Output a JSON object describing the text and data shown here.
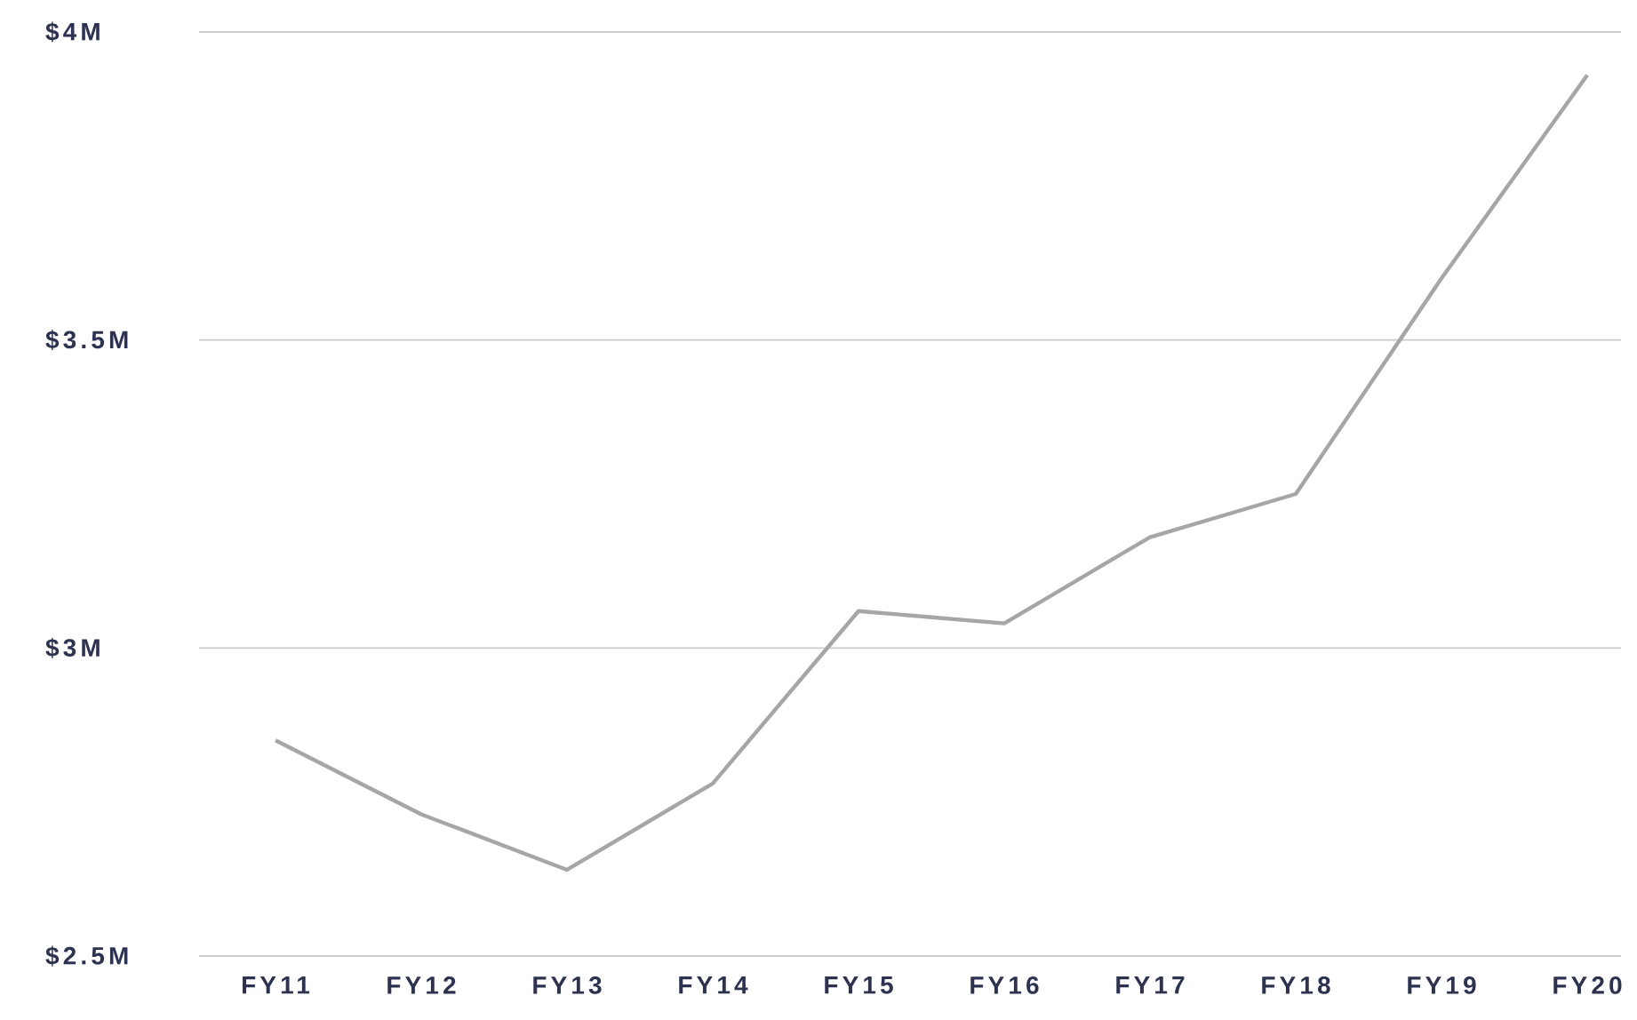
{
  "chart_data": {
    "type": "line",
    "categories": [
      "FY11",
      "FY12",
      "FY13",
      "FY14",
      "FY15",
      "FY16",
      "FY17",
      "FY18",
      "FY19",
      "FY20"
    ],
    "values": [
      2.85,
      2.73,
      2.64,
      2.78,
      3.06,
      3.04,
      3.18,
      3.25,
      3.6,
      3.93
    ],
    "color": "#a6a6a6",
    "ylim": [
      2.5,
      4
    ],
    "yticks": [
      {
        "value": 2.5,
        "label": "$2.5M"
      },
      {
        "value": 3,
        "label": "$3M"
      },
      {
        "value": 3.5,
        "label": "$3.5M"
      },
      {
        "value": 4,
        "label": "$4M"
      }
    ],
    "grid": "y",
    "marker": "none",
    "line_style": "solid"
  }
}
